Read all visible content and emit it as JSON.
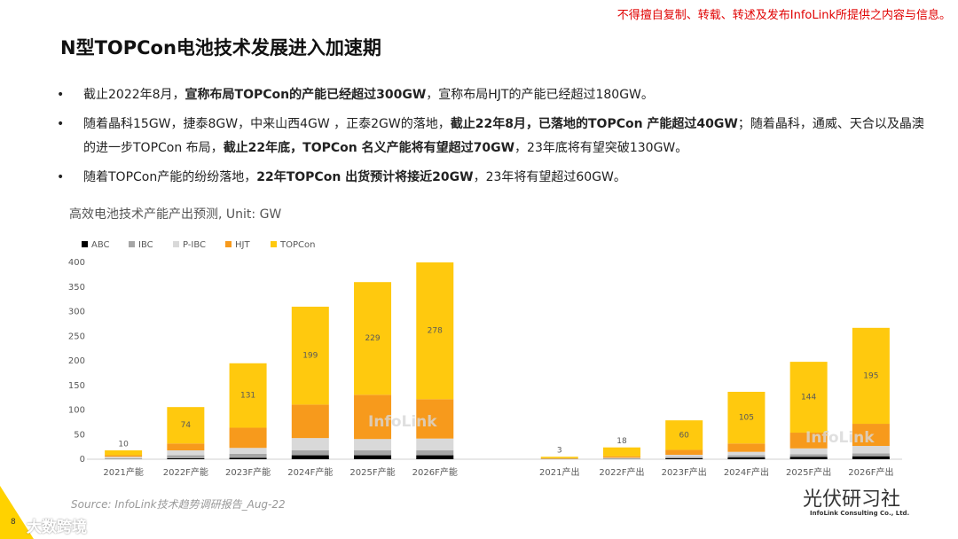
{
  "header": {
    "notice": "不得擅自复制、转载、转述及发布InfoLink所提供之内容与信息。",
    "title": "N型TOPCon电池技术发展进入加速期"
  },
  "bullets": [
    [
      {
        "text": "截止2022年8月，"
      },
      {
        "text": "宣称布局TOPCon的产能已经超过300GW",
        "bold": true
      },
      {
        "text": "，宣称布局HJT的产能已经超过180GW。"
      }
    ],
    [
      {
        "text": "随着晶科15GW，捷泰8GW，中来山西4GW ，正泰2GW的落地，"
      },
      {
        "text": "截止22年8月，已落地的TOPCon 产能超过40GW",
        "bold": true
      },
      {
        "text": "；随着晶科，通威、天合以及晶澳的进一步TOPCon 布局，"
      },
      {
        "text": "截止22年底，TOPCon 名义产能将有望超过70GW",
        "bold": true
      },
      {
        "text": "，23年底将有望突破130GW。"
      }
    ],
    [
      {
        "text": "随着TOPCon产能的纷纷落地，"
      },
      {
        "text": "22年TOPCon 出货预计将接近20GW",
        "bold": true
      },
      {
        "text": "，23年将有望超过60GW。"
      }
    ]
  ],
  "chart_data": {
    "type": "stacked_bar",
    "title": "高效电池技术产能产出预测, Unit: GW",
    "categories": [
      "2021产能",
      "2022F产能",
      "2023F产能",
      "2024F产能",
      "2025F产能",
      "2026F产能",
      null,
      "2021产出",
      "2022F产出",
      "2023F产出",
      "2024F产出",
      "2025F产出",
      "2026F产出"
    ],
    "series": [
      {
        "name": "ABC",
        "color": "#000000",
        "values": [
          0,
          2,
          3,
          8,
          8,
          8,
          null,
          0,
          0,
          2,
          4,
          5,
          6
        ]
      },
      {
        "name": "IBC",
        "color": "#a6a6a6",
        "values": [
          2,
          6,
          8,
          10,
          10,
          10,
          null,
          1,
          2,
          3,
          4,
          5,
          6
        ]
      },
      {
        "name": "P-IBC",
        "color": "#d9d9d9",
        "values": [
          3,
          10,
          12,
          25,
          23,
          24,
          null,
          0,
          1,
          4,
          7,
          12,
          15
        ]
      },
      {
        "name": "HJT",
        "color": "#f79a1c",
        "values": [
          3,
          14,
          41,
          68,
          90,
          80,
          null,
          1,
          3,
          10,
          17,
          32,
          45
        ]
      },
      {
        "name": "TOPCon",
        "color": "#ffc90e",
        "values": [
          10,
          74,
          131,
          199,
          229,
          278,
          null,
          3,
          18,
          60,
          105,
          144,
          195
        ],
        "data_labels": true
      }
    ],
    "ylim": [
      0,
      400
    ],
    "yticks": [
      0,
      50,
      100,
      150,
      200,
      250,
      300,
      350,
      400
    ],
    "grid": false,
    "legend": "top-left",
    "watermarks": [
      "InfoLink",
      "InfoLink"
    ],
    "source": "Source: InfoLink技术趋势调研报告_Aug-22"
  },
  "footer": {
    "brand": "光伏研习社",
    "company": "InfoLink Consulting Co., Ltd.",
    "logo": "大数跨境",
    "page": "8"
  }
}
